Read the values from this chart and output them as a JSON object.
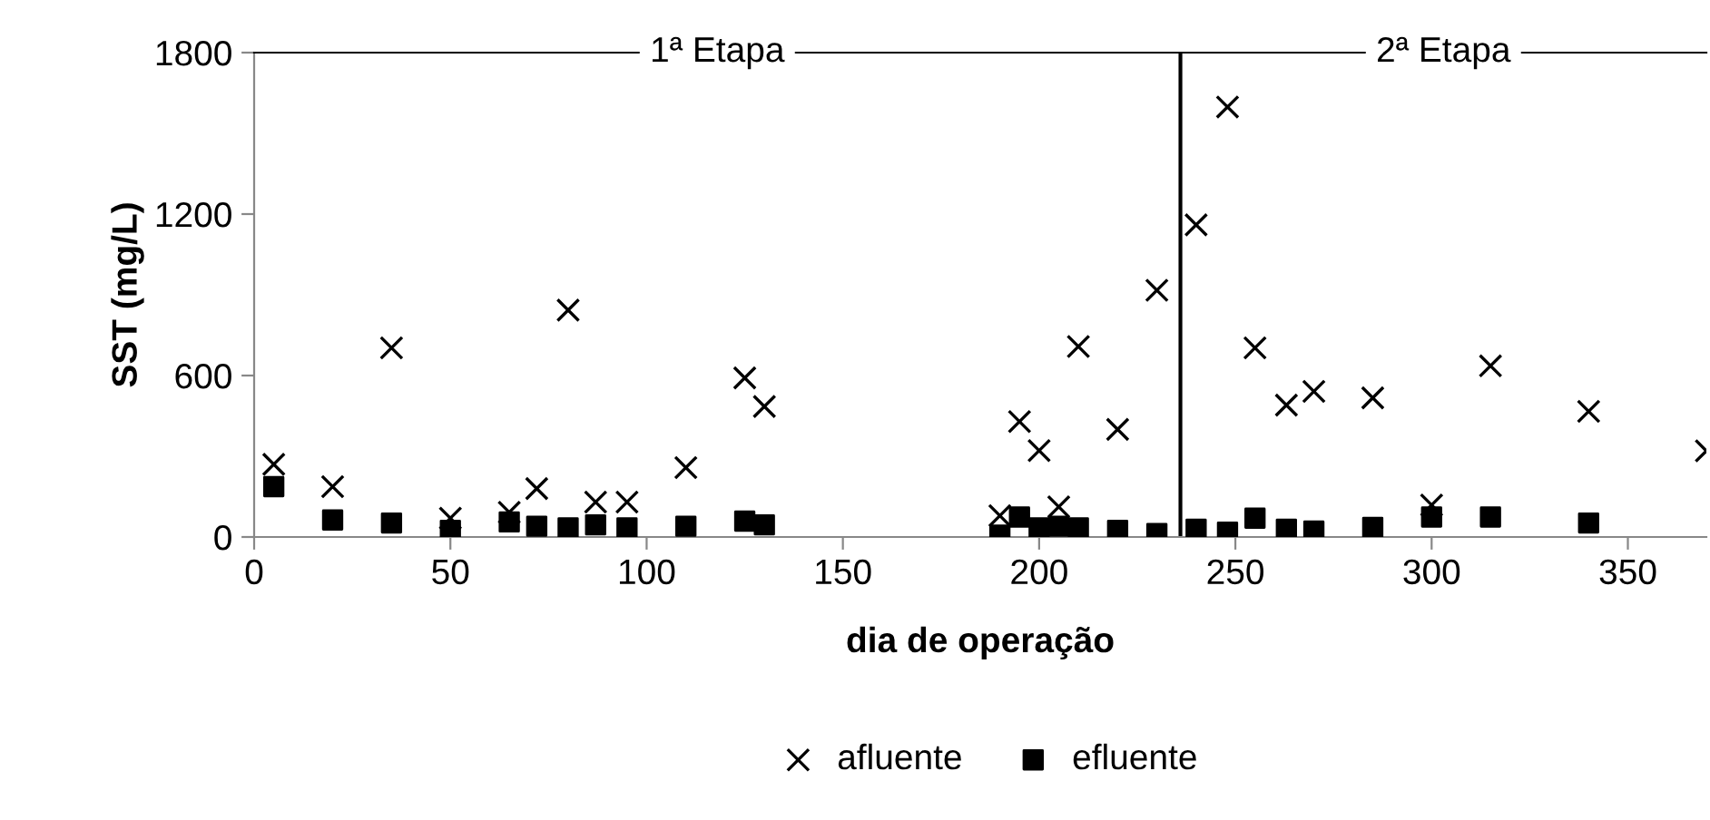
{
  "chart_data": {
    "type": "scatter",
    "xlabel": "dia de operação",
    "ylabel": "SST (mg/L)",
    "xlim": [
      0,
      370
    ],
    "xticks": [
      0,
      50,
      100,
      150,
      200,
      250,
      300,
      350
    ],
    "ylim": [
      0,
      1800
    ],
    "yticks": [
      0,
      600,
      1200,
      1800
    ],
    "grid": false,
    "legend": "bottom",
    "ref_lines": [
      {
        "axis": "x",
        "value": 236,
        "color": "#000000"
      }
    ],
    "annotations": [
      "1ª Etapa",
      "2ª Etapa"
    ],
    "series": [
      {
        "name": "afluente",
        "color": "#000000",
        "marker": "cross",
        "x": [
          5,
          20,
          35,
          50,
          65,
          72,
          80,
          87,
          95,
          110,
          125,
          130,
          190,
          195,
          200,
          205,
          210,
          220,
          230,
          240,
          248,
          255,
          263,
          270,
          285,
          300,
          315,
          340,
          370
        ],
        "values": [
          270,
          187,
          703,
          70,
          92,
          180,
          843,
          130,
          130,
          258,
          591,
          485,
          79,
          429,
          321,
          112,
          708,
          400,
          917,
          1160,
          1598,
          703,
          490,
          541,
          517,
          119,
          636,
          467,
          320
        ]
      },
      {
        "name": "efluente",
        "color": "#000000",
        "marker": "square",
        "x": [
          5,
          20,
          35,
          50,
          65,
          72,
          80,
          87,
          95,
          110,
          125,
          130,
          190,
          195,
          200,
          205,
          210,
          220,
          230,
          240,
          248,
          255,
          263,
          270,
          285,
          300,
          315,
          340
        ],
        "values": [
          187,
          63,
          52,
          25,
          56,
          40,
          34,
          45,
          34,
          40,
          59,
          45,
          7,
          74,
          34,
          40,
          34,
          25,
          13,
          29,
          18,
          70,
          29,
          22,
          36,
          74,
          74,
          52
        ]
      }
    ]
  }
}
